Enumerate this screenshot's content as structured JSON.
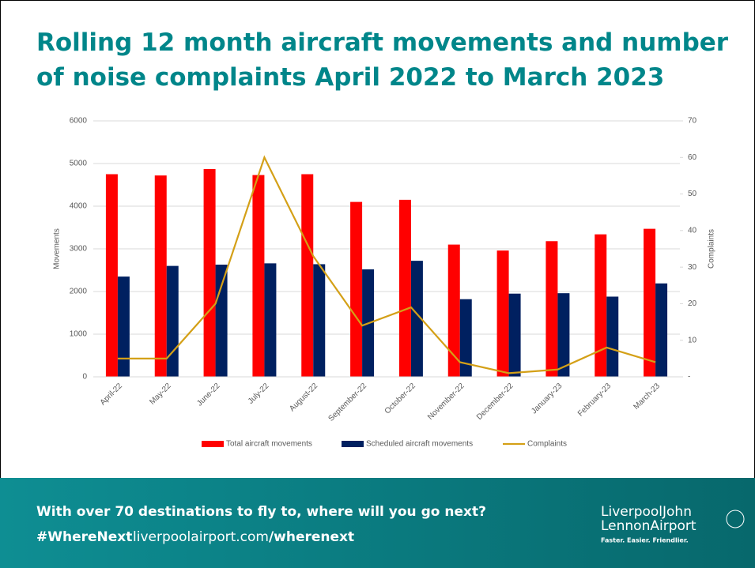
{
  "chart_data": {
    "type": "bar_line",
    "title": "Rolling 12 month aircraft movements and number of noise complaints April 2022 to March 2023",
    "ylabel": "Movements",
    "y2label": "Complaints",
    "categories": [
      "April-22",
      "May-22",
      "June-22",
      "July-22",
      "August-22",
      "September-22",
      "October-22",
      "November-22",
      "December-22",
      "January-23",
      "February-23",
      "March-23"
    ],
    "series": [
      {
        "name": "Total aircraft movements",
        "type": "bar",
        "color": "#ff0000",
        "values": [
          4750,
          4720,
          4870,
          4730,
          4750,
          4100,
          4150,
          3100,
          2960,
          3180,
          3340,
          3470
        ]
      },
      {
        "name": "Scheduled aircraft movements",
        "type": "bar",
        "color": "#002060",
        "values": [
          2350,
          2600,
          2630,
          2660,
          2640,
          2520,
          2720,
          1820,
          1950,
          1960,
          1880,
          2190
        ]
      },
      {
        "name": "Complaints",
        "type": "line",
        "color": "#d4a017",
        "axis": "y2",
        "values": [
          5,
          5,
          20,
          60,
          33,
          14,
          19,
          4,
          1,
          2,
          8,
          4
        ]
      }
    ],
    "ylim": [
      0,
      6000
    ],
    "yticks": [
      0,
      1000,
      2000,
      3000,
      4000,
      5000,
      6000
    ],
    "y2lim": [
      0,
      70
    ],
    "y2ticks": [
      {
        "value": 0,
        "label": "-"
      },
      10,
      20,
      30,
      40,
      50,
      60,
      70
    ],
    "grid": true,
    "legend": "bottom"
  },
  "footer": {
    "tagline": "With over 70 destinations to fly to, where will you go next?",
    "hashtag": "#WhereNext",
    "url": "liverpoolairport.com",
    "url_path": "/wherenext",
    "logo_line1": "LiverpoolJohn",
    "logo_line2": "LennonAirport",
    "slogan": "Faster. Easier. Friendlier."
  }
}
